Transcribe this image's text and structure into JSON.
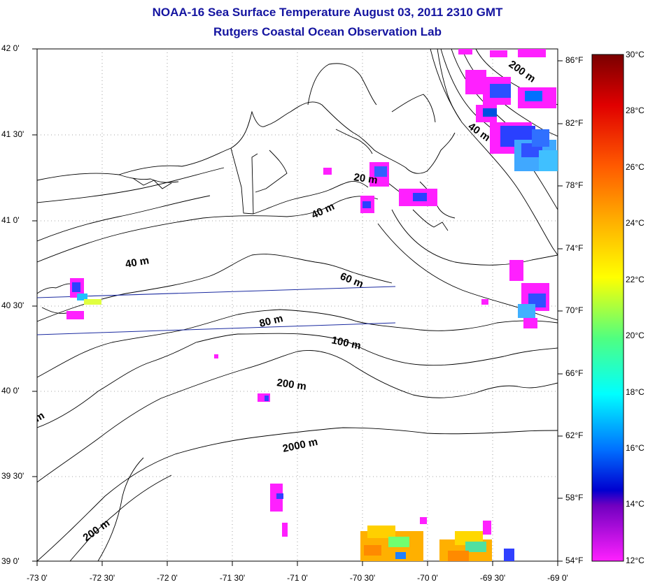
{
  "title": {
    "line1": "NOAA-16 Sea Surface Temperature August 03, 2011 2310 GMT",
    "line2": "Rutgers Coastal Ocean Observation Lab"
  },
  "axes": {
    "lat_labels": [
      "42 0'",
      "41 30'",
      "41 0'",
      "40 30'",
      "40 0'",
      "39 30'",
      "39 0'"
    ],
    "lon_labels": [
      "-73 0'",
      "-72 30'",
      "-72 0'",
      "-71 30'",
      "-71 0'",
      "-70 30'",
      "-70 0'",
      "-69 30'",
      "-69 0'"
    ]
  },
  "colorbar": {
    "fahrenheit_labels": [
      "86°F",
      "82°F",
      "78°F",
      "74°F",
      "70°F",
      "66°F",
      "62°F",
      "58°F",
      "54°F"
    ],
    "celsius_labels": [
      "30°C",
      "28°C",
      "26°C",
      "24°C",
      "22°C",
      "20°C",
      "18°C",
      "16°C",
      "14°C",
      "12°C"
    ],
    "colors": [
      "#800000",
      "#ff0000",
      "#ff8000",
      "#ffff00",
      "#80ff80",
      "#00ffff",
      "#0080ff",
      "#0000ff",
      "#8000ff",
      "#ff00ff"
    ]
  },
  "contour_labels": {
    "c20": "20 m",
    "c40a": "40 m",
    "c40b": "40 m",
    "c40c": "40 m",
    "c60": "60 m",
    "c80": "80 m",
    "c100": "100 m",
    "c200a": "200 m",
    "c200b": "200 m",
    "c200c": "200 m",
    "c2000": "2000 m",
    "cm": "m"
  }
}
